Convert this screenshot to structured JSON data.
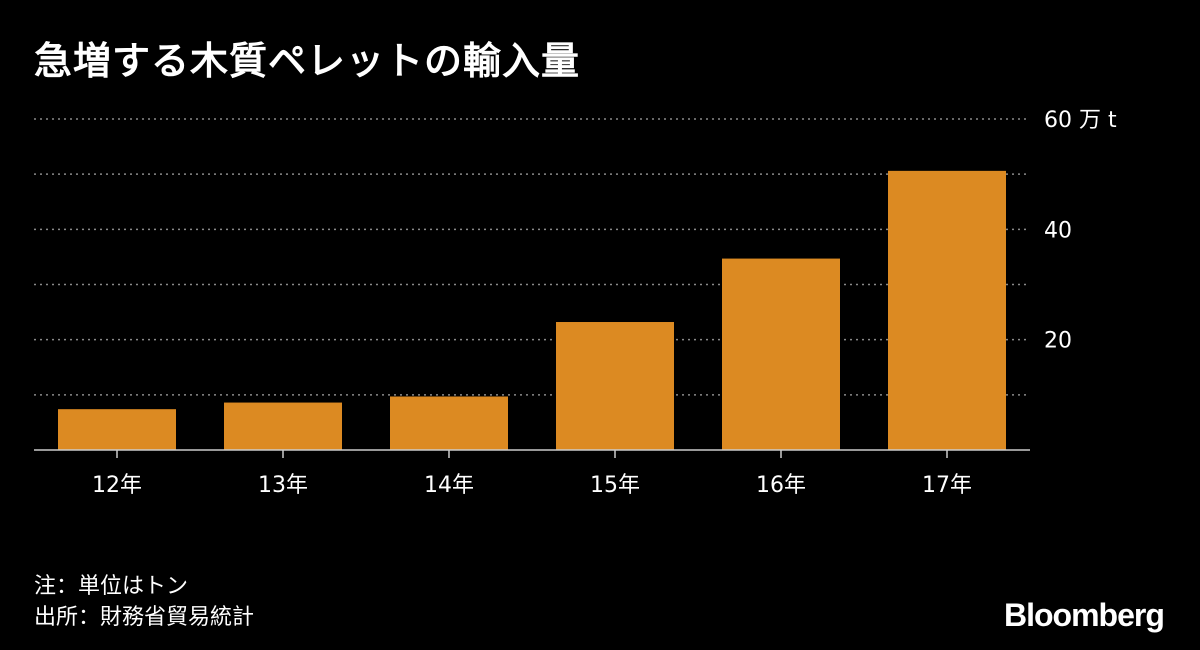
{
  "chart_data": {
    "type": "bar",
    "title": "急増する木質ペレットの輸入量",
    "categories": [
      "12年",
      "13年",
      "14年",
      "15年",
      "16年",
      "17年"
    ],
    "values": [
      7.4,
      8.6,
      9.7,
      23.2,
      34.7,
      50.6
    ],
    "ylim": [
      0,
      60
    ],
    "yticks": [
      0,
      10,
      20,
      30,
      40,
      50,
      60
    ],
    "ytick_labels": {
      "20": "20",
      "40": "40",
      "60": "60 万 t"
    },
    "grid": true,
    "bar_color": "#dc8a22"
  },
  "notes": {
    "unit": "注：単位はトン",
    "source": "出所：財務省貿易統計"
  },
  "brand": "Bloomberg",
  "colors": {
    "background": "#000000",
    "text": "#ffffff",
    "grid": "#8a8a8a",
    "axis": "#cccccc"
  }
}
